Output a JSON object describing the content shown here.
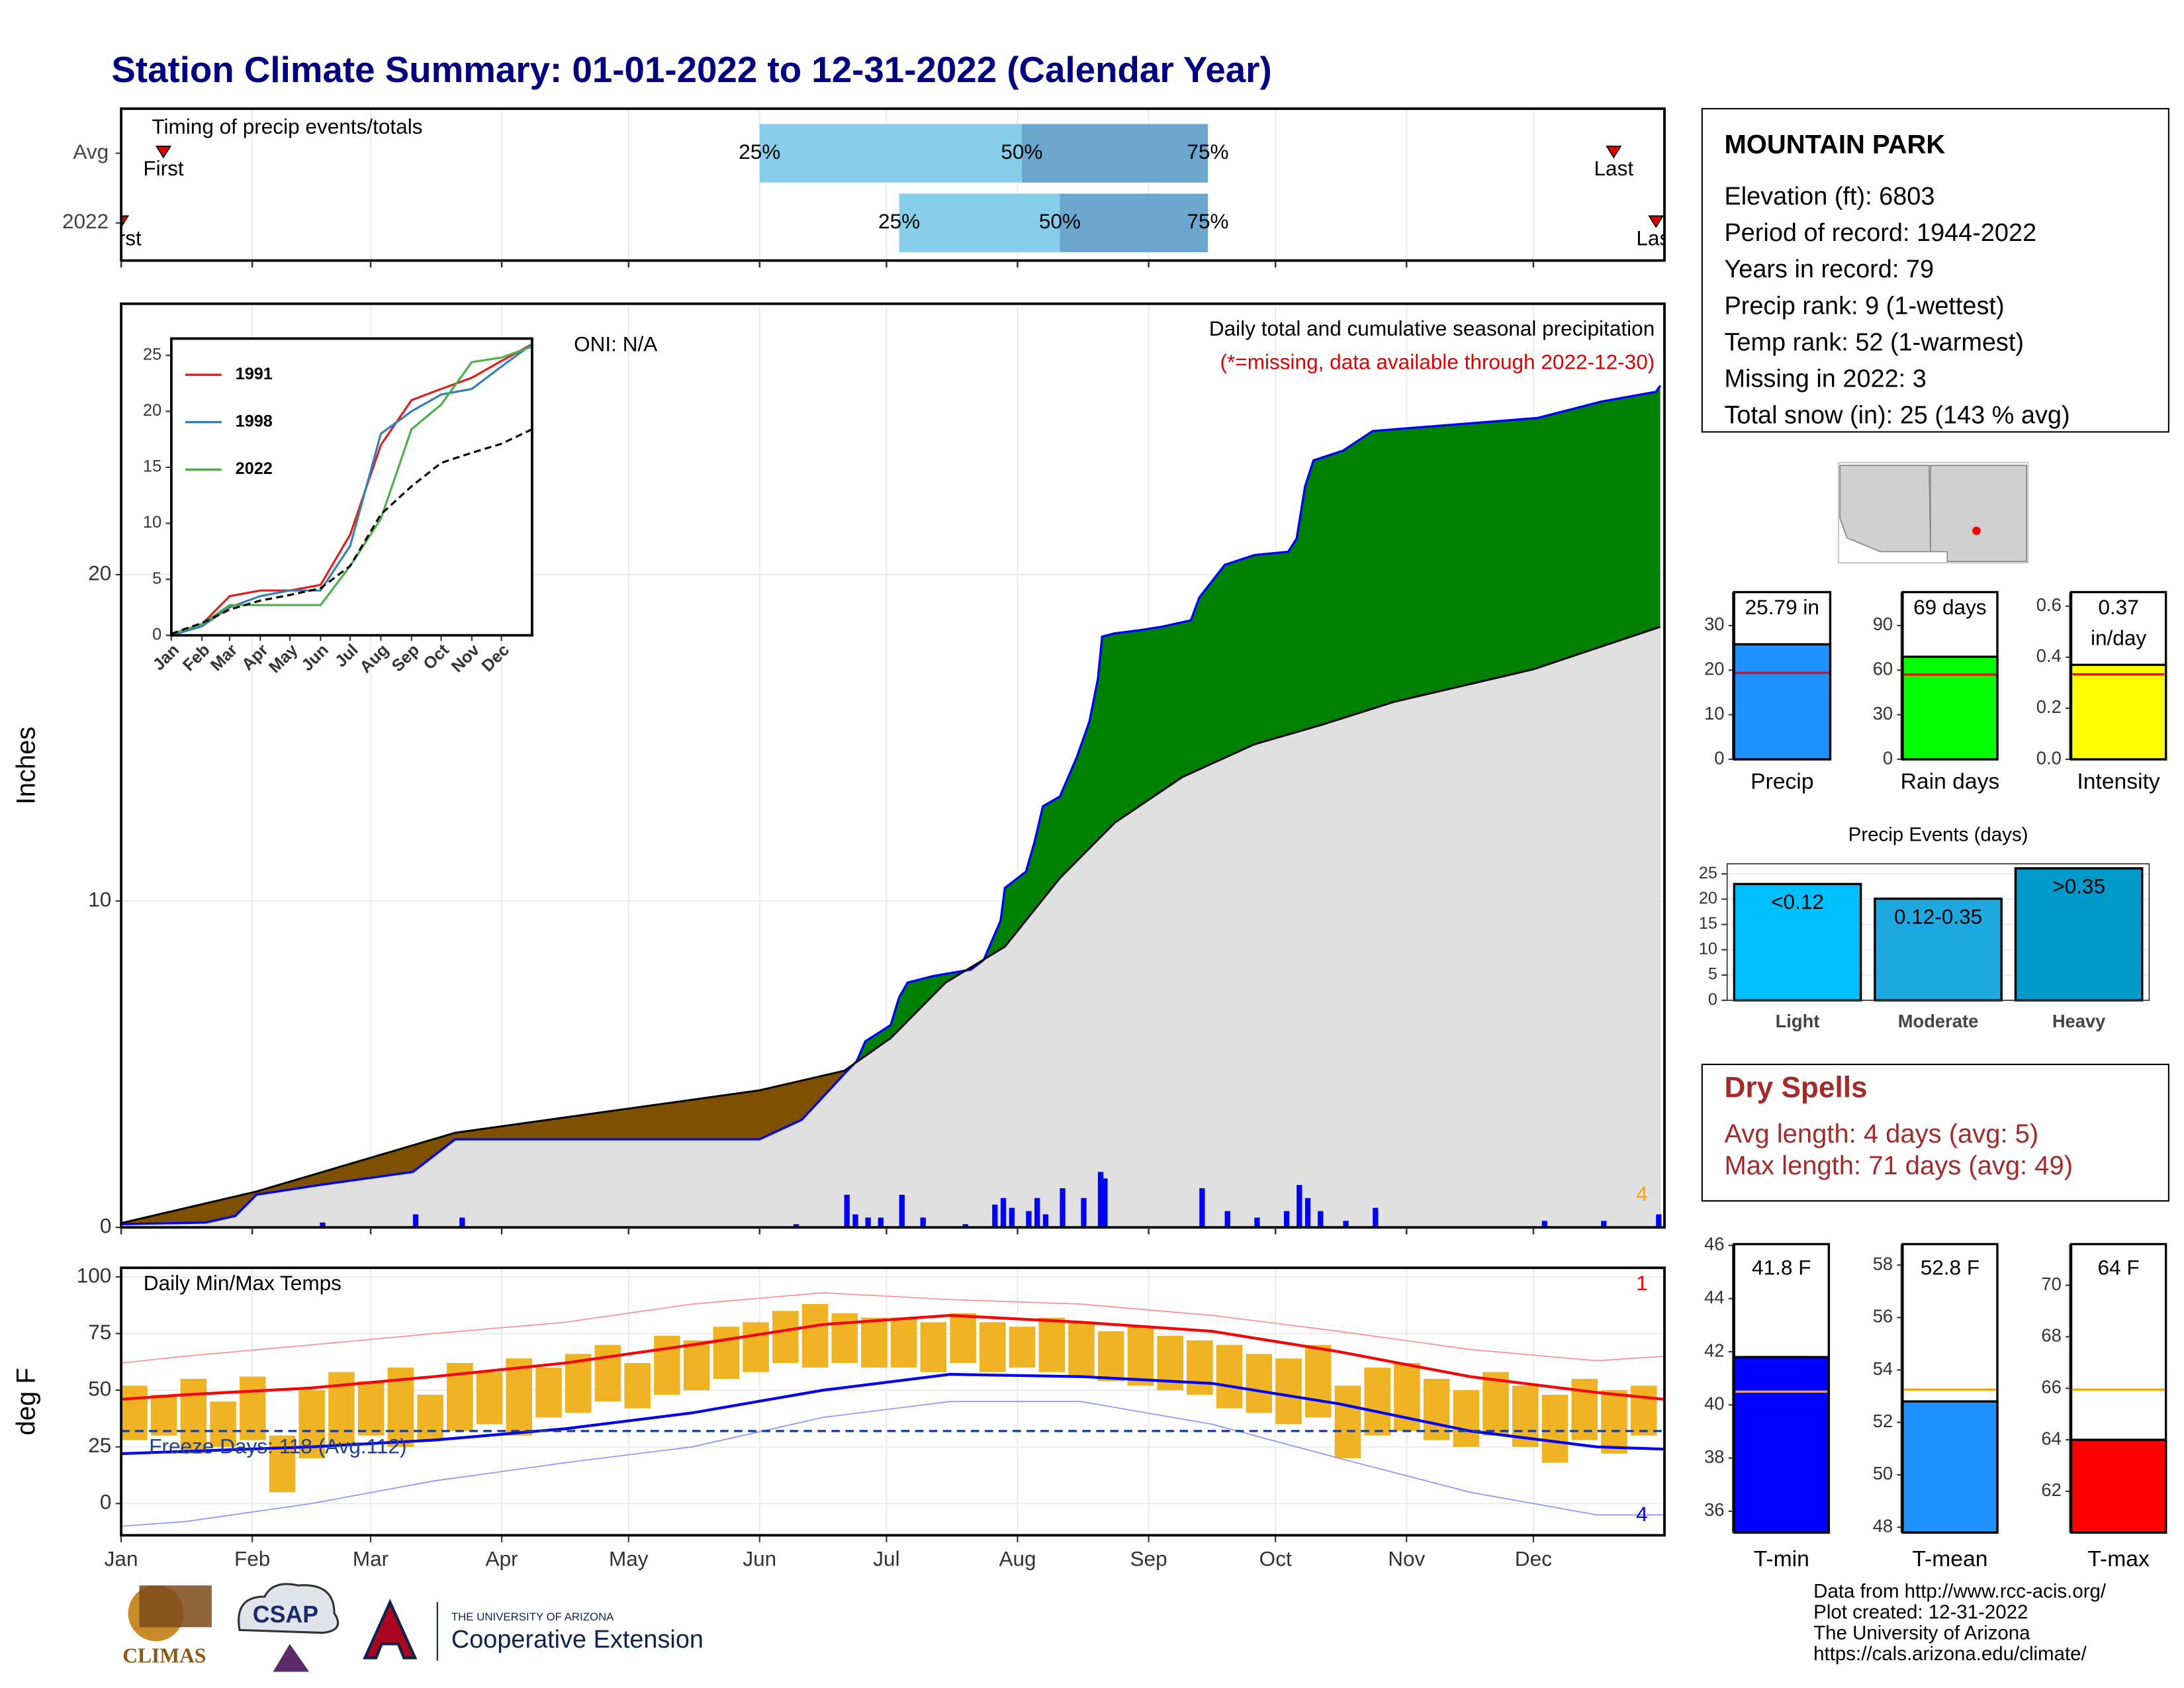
{
  "title": "Station Climate Summary: 01-01-2022 to 12-31-2022 (Calendar Year)",
  "chart_data": [
    {
      "type": "timing",
      "title": "Timing of precip events/totals",
      "xlim": [
        0,
        365
      ],
      "rows": [
        {
          "name": "Avg",
          "first": 10,
          "p25": 151,
          "p50": 213,
          "p75": 257,
          "last": 353
        },
        {
          "name": "2022",
          "first": 0,
          "p25": 184,
          "p50": 222,
          "p75": 257,
          "last": 363
        }
      ],
      "labels": {
        "first": "First",
        "p25": "25%",
        "p50": "50%",
        "p75": "75%",
        "last": "Last"
      },
      "colors": [
        "#87ceeb",
        "#6aa6cd"
      ],
      "marker_color": "#e00000"
    },
    {
      "type": "area",
      "title": "Daily total and cumulative seasonal precipitation",
      "subtitle": "(*=missing, data available through 2022-12-30)",
      "annotation": "ONI: N/A",
      "ylabel": "Inches",
      "xlim": [
        0,
        365
      ],
      "ylim": [
        0,
        28.3
      ],
      "yticks": [
        0,
        10,
        20
      ],
      "grid": true,
      "series": [
        {
          "kind": "cumulative",
          "color": "#0000ff",
          "x": [
            0,
            20,
            27,
            32,
            47,
            69,
            79,
            151,
            161,
            171,
            174,
            176,
            182,
            184,
            186,
            192,
            201,
            204,
            206,
            208,
            209,
            214,
            216,
            218,
            222,
            226,
            229,
            231,
            232,
            235,
            241,
            246,
            253,
            255,
            261,
            268,
            276,
            278,
            280,
            282,
            289,
            296,
            335,
            350,
            363,
            364
          ],
          "values": [
            0.1,
            0.15,
            0.35,
            1.0,
            1.3,
            1.7,
            2.7,
            2.7,
            3.3,
            4.7,
            5.1,
            5.7,
            6.2,
            7.05,
            7.5,
            7.7,
            7.9,
            8.2,
            8.8,
            9.4,
            10.4,
            10.9,
            11.8,
            12.9,
            13.2,
            14.4,
            15.5,
            16.8,
            18.1,
            18.2,
            18.3,
            18.4,
            18.6,
            19.3,
            20.3,
            20.6,
            20.7,
            21.1,
            22.7,
            23.5,
            23.8,
            24.4,
            24.8,
            25.3,
            25.6,
            25.79
          ]
        },
        {
          "kind": "normal",
          "color": "#000000",
          "x": [
            0,
            32,
            79,
            151,
            171,
            182,
            195,
            209,
            222,
            235,
            251,
            268,
            284,
            301,
            334,
            364
          ],
          "values": [
            0.13,
            1.1,
            2.9,
            4.2,
            4.8,
            5.8,
            7.5,
            8.6,
            10.7,
            12.4,
            13.8,
            14.8,
            15.4,
            16.1,
            17.1,
            18.4
          ]
        },
        {
          "kind": "daily",
          "color": "#0000ff",
          "x": [
            47,
            69,
            80,
            159,
            171,
            173,
            176,
            179,
            184,
            189,
            199,
            206,
            208,
            210,
            214,
            216,
            218,
            222,
            227,
            231,
            232,
            255,
            261,
            268,
            275,
            278,
            280,
            283,
            289,
            296,
            336,
            350,
            363
          ],
          "values": [
            0.15,
            0.4,
            0.3,
            0.1,
            1.0,
            0.4,
            0.3,
            0.3,
            1.0,
            0.3,
            0.1,
            0.7,
            0.9,
            0.6,
            0.5,
            0.9,
            0.4,
            1.2,
            0.9,
            1.7,
            1.5,
            1.2,
            0.5,
            0.3,
            0.5,
            1.3,
            0.9,
            0.5,
            0.2,
            0.6,
            0.2,
            0.2,
            0.4
          ]
        }
      ],
      "fill_colors": {
        "above": "#008000",
        "below": "#7f4f00",
        "base": "#e0e0e0"
      },
      "end_note": "4",
      "end_note_color": "#ffa500"
    },
    {
      "type": "temperature",
      "title": "Daily Min/Max Temps",
      "ylabel": "deg F",
      "xlim": [
        0,
        365
      ],
      "xticks": [
        {
          "value": 0,
          "label": "Jan"
        },
        {
          "value": 31,
          "label": "Feb"
        },
        {
          "value": 59,
          "label": "Mar"
        },
        {
          "value": 90,
          "label": "Apr"
        },
        {
          "value": 120,
          "label": "May"
        },
        {
          "value": 151,
          "label": "Jun"
        },
        {
          "value": 181,
          "label": "Jul"
        },
        {
          "value": 212,
          "label": "Aug"
        },
        {
          "value": 243,
          "label": "Sep"
        },
        {
          "value": 273,
          "label": "Oct"
        },
        {
          "value": 304,
          "label": "Nov"
        },
        {
          "value": 334,
          "label": "Dec"
        }
      ],
      "ylim": [
        -14,
        104
      ],
      "yticks": [
        0,
        25,
        50,
        75,
        100
      ],
      "grid": true,
      "freeze": 32,
      "freeze_label": "Freeze Days: 118 (Avg:112)",
      "freeze_color": "#1f3f8f",
      "notes": [
        {
          "text": "1",
          "color": "#ff0000"
        },
        {
          "text": "4",
          "color": "#0000ff"
        }
      ],
      "series": [
        {
          "kind": "normal-max",
          "color": "#ff0000",
          "x": [
            0,
            15,
            45,
            74,
            105,
            135,
            166,
            196,
            227,
            258,
            288,
            319,
            349,
            365
          ],
          "values": [
            46,
            48,
            51,
            56,
            62,
            70,
            79,
            83,
            80,
            76,
            67,
            56,
            49,
            46
          ]
        },
        {
          "kind": "normal-min",
          "color": "#0000ff",
          "x": [
            0,
            15,
            45,
            74,
            105,
            135,
            166,
            196,
            227,
            258,
            288,
            319,
            349,
            365
          ],
          "values": [
            22,
            23,
            25,
            28,
            33,
            40,
            50,
            57,
            56,
            53,
            44,
            32,
            25,
            24
          ]
        },
        {
          "kind": "record-high",
          "color": "#ff8f8f",
          "x": [
            0,
            15,
            45,
            74,
            105,
            135,
            166,
            196,
            227,
            258,
            288,
            319,
            349,
            365
          ],
          "values": [
            62,
            65,
            70,
            75,
            80,
            88,
            93,
            90,
            88,
            83,
            76,
            68,
            63,
            65
          ]
        },
        {
          "kind": "record-low",
          "color": "#8f8fff",
          "x": [
            0,
            15,
            45,
            74,
            105,
            135,
            166,
            196,
            227,
            258,
            288,
            319,
            349,
            365
          ],
          "values": [
            -10,
            -8,
            0,
            10,
            18,
            25,
            38,
            45,
            45,
            35,
            20,
            5,
            -5,
            -5
          ]
        },
        {
          "kind": "daily-high",
          "color": "#f0b323",
          "x": [
            0,
            7,
            14,
            21,
            28,
            35,
            42,
            49,
            56,
            63,
            70,
            77,
            84,
            91,
            98,
            105,
            112,
            119,
            126,
            133,
            140,
            147,
            154,
            161,
            168,
            175,
            182,
            189,
            196,
            203,
            210,
            217,
            224,
            231,
            238,
            245,
            252,
            259,
            266,
            273,
            280,
            287,
            294,
            301,
            308,
            315,
            322,
            329,
            336,
            343,
            350,
            357
          ],
          "values": [
            52,
            48,
            55,
            45,
            56,
            30,
            50,
            58,
            54,
            60,
            48,
            62,
            58,
            64,
            60,
            66,
            70,
            62,
            74,
            72,
            78,
            80,
            85,
            88,
            84,
            82,
            82,
            80,
            84,
            80,
            78,
            82,
            80,
            76,
            78,
            74,
            72,
            70,
            66,
            64,
            70,
            52,
            60,
            62,
            55,
            50,
            58,
            52,
            48,
            55,
            50,
            52
          ]
        },
        {
          "kind": "daily-low",
          "color": "#f0b323",
          "x": [
            0,
            7,
            14,
            21,
            28,
            35,
            42,
            49,
            56,
            63,
            70,
            77,
            84,
            91,
            98,
            105,
            112,
            119,
            126,
            133,
            140,
            147,
            154,
            161,
            168,
            175,
            182,
            189,
            196,
            203,
            210,
            217,
            224,
            231,
            238,
            245,
            252,
            259,
            266,
            273,
            280,
            287,
            294,
            301,
            308,
            315,
            322,
            329,
            336,
            343,
            350,
            357
          ],
          "values": [
            28,
            30,
            22,
            25,
            28,
            5,
            20,
            26,
            30,
            25,
            28,
            32,
            35,
            30,
            38,
            40,
            45,
            42,
            48,
            50,
            55,
            58,
            62,
            60,
            62,
            60,
            60,
            58,
            62,
            58,
            60,
            58,
            56,
            54,
            52,
            50,
            48,
            42,
            40,
            35,
            38,
            20,
            30,
            32,
            28,
            25,
            30,
            25,
            18,
            28,
            22,
            30
          ]
        }
      ]
    },
    {
      "type": "line",
      "xlim": [
        0,
        365
      ],
      "ylim": [
        0,
        26.5
      ],
      "yticks": [
        0,
        5,
        10,
        15,
        20,
        25
      ],
      "legend": "top-left",
      "xticks": [
        {
          "value": 0,
          "label": "Jan"
        },
        {
          "value": 31,
          "label": "Feb"
        },
        {
          "value": 59,
          "label": "Mar"
        },
        {
          "value": 90,
          "label": "Apr"
        },
        {
          "value": 120,
          "label": "May"
        },
        {
          "value": 151,
          "label": "Jun"
        },
        {
          "value": 181,
          "label": "Jul"
        },
        {
          "value": 212,
          "label": "Aug"
        },
        {
          "value": 243,
          "label": "Sep"
        },
        {
          "value": 273,
          "label": "Oct"
        },
        {
          "value": 304,
          "label": "Nov"
        },
        {
          "value": 334,
          "label": "Dec"
        }
      ],
      "series": [
        {
          "name": "1991",
          "color": "#e41a1c",
          "x": [
            0,
            31,
            59,
            90,
            120,
            151,
            181,
            212,
            243,
            273,
            304,
            334,
            365
          ],
          "values": [
            0,
            1,
            3.5,
            4,
            4,
            4.5,
            9,
            17,
            21,
            22,
            23,
            24.5,
            26
          ]
        },
        {
          "name": "1998",
          "color": "#377eb8",
          "x": [
            0,
            31,
            59,
            90,
            120,
            151,
            181,
            212,
            243,
            273,
            304,
            334,
            365
          ],
          "values": [
            0,
            0.8,
            2.5,
            3.5,
            4,
            4,
            8,
            18,
            20,
            21.5,
            22,
            24,
            26
          ]
        },
        {
          "name": "2022",
          "color": "#4daf4a",
          "x": [
            0,
            31,
            59,
            90,
            120,
            151,
            181,
            212,
            243,
            273,
            304,
            334,
            365
          ],
          "values": [
            0.1,
            1,
            2.7,
            2.7,
            2.7,
            2.7,
            6.2,
            10.4,
            18.4,
            20.6,
            24.4,
            24.8,
            25.79
          ]
        },
        {
          "color": "#000000",
          "dashed": true,
          "x": [
            0,
            31,
            59,
            90,
            120,
            151,
            181,
            212,
            243,
            273,
            304,
            334,
            365
          ],
          "values": [
            0.13,
            1.1,
            2.3,
            3.1,
            3.6,
            4.2,
            6.2,
            10.8,
            13.3,
            15.4,
            16.3,
            17.1,
            18.4
          ]
        }
      ]
    },
    {
      "type": "bar",
      "xlabel": "Precip",
      "values": [
        25.79
      ],
      "value_labels": [
        "25.79 in"
      ],
      "normal": 19.4,
      "color": "#1e90ff",
      "normal_color": "#ff0000",
      "ylim": [
        0,
        37.5
      ],
      "yticks": [
        0,
        10,
        20,
        30
      ]
    },
    {
      "type": "bar",
      "xlabel": "Rain days",
      "values": [
        69
      ],
      "value_labels": [
        "69 days"
      ],
      "normal": 57,
      "color": "#00ff00",
      "normal_color": "#ff0000",
      "ylim": [
        0,
        112.5
      ],
      "yticks": [
        0,
        30,
        60,
        90
      ]
    },
    {
      "type": "bar",
      "xlabel": "Intensity",
      "values": [
        0.37
      ],
      "value_labels": [
        "0.37 in/day"
      ],
      "normal": 0.333,
      "color": "#ffff00",
      "normal_color": "#ff0000",
      "ylim": [
        0,
        0.655
      ],
      "yticks": [
        {
          "value": 0,
          "label": "0.0"
        },
        0.2,
        0.4,
        0.6
      ]
    },
    {
      "type": "bar",
      "title": "Precip Events (days)",
      "categories": [
        "Light",
        "Moderate",
        "Heavy"
      ],
      "values": [
        23,
        20.1,
        26.1
      ],
      "bar_labels": [
        "<0.12",
        "0.12-0.35",
        ">0.35"
      ],
      "colors": [
        "#00bfff",
        "#1ea8e0",
        "#0099cc"
      ],
      "ylim": [
        0,
        27
      ],
      "yticks": [
        0,
        5,
        10,
        15,
        20,
        25
      ],
      "grid": true
    },
    {
      "type": "bar",
      "xlabel": "T-min",
      "values": [
        41.8
      ],
      "value_labels": [
        "41.8 F"
      ],
      "normal": 40.5,
      "color": "#0000ff",
      "normal_color": "#ffa500",
      "ylim": [
        35.2,
        46.05
      ],
      "yticks": [
        36,
        38,
        40,
        42,
        44,
        46
      ]
    },
    {
      "type": "bar",
      "xlabel": "T-mean",
      "values": [
        52.8
      ],
      "value_labels": [
        "52.8 F"
      ],
      "normal": 53.25,
      "color": "#1e90ff",
      "normal_color": "#ffa500",
      "ylim": [
        47.8,
        58.8
      ],
      "yticks": [
        48,
        50,
        52,
        54,
        56,
        58
      ]
    },
    {
      "type": "bar",
      "xlabel": "T-max",
      "values": [
        64
      ],
      "value_labels": [
        "64 F"
      ],
      "normal": 65.95,
      "color": "#ff0000",
      "normal_color": "#ffa500",
      "ylim": [
        60.4,
        71.6
      ],
      "yticks": [
        62,
        64,
        66,
        68,
        70
      ]
    }
  ],
  "station": {
    "name": "MOUNTAIN PARK",
    "lines": [
      "Elevation (ft): 6803",
      "Period of record: 1944-2022",
      "Years in record: 79",
      "Precip rank: 9 (1-wettest)",
      "Temp rank: 52 (1-warmest)",
      "Missing in 2022: 3",
      "Total snow (in): 25 (143 % avg)"
    ]
  },
  "dry_spells": {
    "title": "Dry Spells",
    "lines": [
      "Avg length: 4 days (avg: 5)",
      "Max length: 71 days (avg: 49)"
    ]
  },
  "footer": {
    "lines": [
      "Data from http://www.rcc-acis.org/",
      "Plot created: 12-31-2022",
      "The University of Arizona",
      "https://cals.arizona.edu/climate/"
    ]
  },
  "logos": {
    "climas": "CLIMAS",
    "csap": "CSAP",
    "university": "THE UNIVERSITY OF ARIZONA",
    "extension": "Cooperative Extension"
  }
}
